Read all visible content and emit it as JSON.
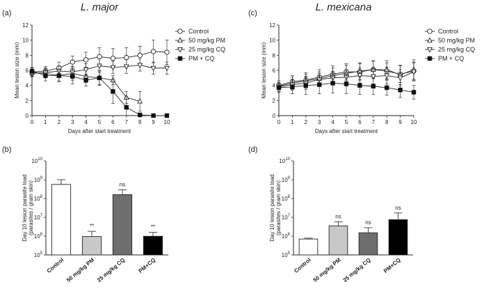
{
  "chart_data": [
    {
      "panel": "(a)",
      "type": "line",
      "title": "L. major",
      "xlabel": "Days after start treatment",
      "ylabel": "Mean lesion size (mm)",
      "xlim": [
        0,
        10
      ],
      "ylim": [
        0,
        12
      ],
      "xticks": [
        "0",
        "1",
        "2",
        "3",
        "4",
        "5",
        "6",
        "7",
        "8",
        "9",
        "10"
      ],
      "yticks": [
        "0",
        "2",
        "4",
        "6",
        "8",
        "10",
        "12"
      ],
      "x": [
        0,
        1,
        2,
        3,
        4,
        5,
        6,
        7,
        8,
        9,
        10
      ],
      "series": [
        {
          "name": "Control",
          "marker": "circle-open",
          "values": [
            5.8,
            5.9,
            6.3,
            7.1,
            7.4,
            7.8,
            7.6,
            7.7,
            8.0,
            8.5,
            8.4
          ],
          "err": [
            0.5,
            0.6,
            0.8,
            0.8,
            1.0,
            1.2,
            1.3,
            1.3,
            1.2,
            1.5,
            1.6
          ]
        },
        {
          "name": "50 mg/kg PM",
          "marker": "triangle-up-open",
          "values": [
            5.7,
            5.6,
            5.3,
            5.6,
            5.2,
            5.0,
            4.7,
            2.4,
            1.9,
            null,
            null
          ],
          "err": [
            0.6,
            0.6,
            0.7,
            0.9,
            0.8,
            0.9,
            0.6,
            0.8,
            1.3,
            null,
            null
          ]
        },
        {
          "name": "25 mg/kg CQ",
          "marker": "triangle-down-open",
          "values": [
            5.6,
            5.7,
            5.9,
            5.8,
            6.1,
            6.6,
            6.4,
            6.5,
            6.7,
            6.3,
            6.3
          ],
          "err": [
            0.4,
            0.6,
            0.7,
            0.7,
            0.8,
            0.9,
            0.8,
            0.9,
            0.8,
            0.8,
            0.8
          ]
        },
        {
          "name": "PM + CQ",
          "marker": "square-filled",
          "values": [
            5.9,
            5.3,
            5.3,
            5.2,
            4.7,
            5.0,
            3.2,
            1.1,
            0.1,
            0.0,
            0.0
          ],
          "err": [
            0.5,
            0.7,
            0.8,
            1.0,
            0.8,
            1.0,
            1.6,
            1.4,
            0.2,
            0.1,
            0.1
          ]
        }
      ]
    },
    {
      "panel": "(c)",
      "type": "line",
      "title": "L. mexicana",
      "xlabel": "Days after start treatment",
      "ylabel": "Mean lesion size (mm)",
      "xlim": [
        0,
        10
      ],
      "ylim": [
        0,
        12
      ],
      "xticks": [
        "0",
        "1",
        "2",
        "3",
        "4",
        "5",
        "6",
        "7",
        "8",
        "9",
        "10"
      ],
      "yticks": [
        "0",
        "2",
        "4",
        "6",
        "8",
        "10",
        "12"
      ],
      "x": [
        0,
        1,
        2,
        3,
        4,
        5,
        6,
        7,
        8,
        9,
        10
      ],
      "series": [
        {
          "name": "Control",
          "marker": "circle-open",
          "values": [
            4.0,
            4.5,
            4.7,
            5.1,
            5.5,
            5.8,
            5.8,
            6.1,
            5.9,
            5.5,
            5.9
          ],
          "err": [
            0.6,
            0.8,
            1.0,
            1.0,
            1.1,
            1.1,
            1.1,
            1.2,
            1.1,
            1.1,
            1.2
          ]
        },
        {
          "name": "50 mg/kg PM",
          "marker": "triangle-up-open",
          "values": [
            3.9,
            4.3,
            4.6,
            4.9,
            5.3,
            5.6,
            5.9,
            6.1,
            6.1,
            5.4,
            6.1
          ],
          "err": [
            0.7,
            0.8,
            0.9,
            0.9,
            1.0,
            1.1,
            1.1,
            1.1,
            1.2,
            1.3,
            1.3
          ]
        },
        {
          "name": "25 mg/kg CQ",
          "marker": "triangle-down-open",
          "values": [
            3.8,
            4.1,
            4.3,
            4.8,
            5.0,
            5.1,
            5.3,
            5.2,
            5.3,
            5.0,
            5.8
          ],
          "err": [
            0.6,
            0.7,
            0.8,
            0.8,
            0.9,
            1.0,
            1.0,
            1.0,
            1.1,
            1.1,
            1.2
          ]
        },
        {
          "name": "PM + CQ",
          "marker": "square-filled",
          "values": [
            3.7,
            3.8,
            4.0,
            4.1,
            4.3,
            4.2,
            4.0,
            3.9,
            3.7,
            3.4,
            3.1
          ],
          "err": [
            0.6,
            0.9,
            1.2,
            1.2,
            1.3,
            1.3,
            1.2,
            1.1,
            1.0,
            1.0,
            0.9
          ]
        }
      ]
    },
    {
      "panel": "(b)",
      "type": "bar",
      "ylabel": "Day 10 lesion parasite load",
      "ylabel2": "(parasites / gram skin)",
      "yscale": "log",
      "ylim_exp": [
        5,
        10
      ],
      "ytick_base": "10",
      "ytick_exps": [
        "5",
        "6",
        "7",
        "8",
        "9",
        "10"
      ],
      "categories": [
        "Control",
        "50 mg/kg PM",
        "25 mg/kg CQ",
        "PM+CQ"
      ],
      "values": [
        560000000,
        950000,
        160000000,
        980000
      ],
      "err_upper": [
        1000000000,
        1800000,
        290000000,
        1600000
      ],
      "fills": [
        "#ffffff",
        "#c8c8c8",
        "#6e6e6e",
        "#000000"
      ],
      "significance": [
        "",
        "**",
        "ns",
        "**"
      ]
    },
    {
      "panel": "(d)",
      "type": "bar",
      "ylabel": "Day 10 lesion parasite load",
      "ylabel2": "(parasites / gram skin)",
      "yscale": "log",
      "ylim_exp": [
        5,
        10
      ],
      "ytick_base": "10",
      "ytick_exps": [
        "5",
        "6",
        "7",
        "8",
        "9",
        "10"
      ],
      "categories": [
        "Control",
        "50 mg/kg PM",
        "25 mg/kg CQ",
        "PM+CQ"
      ],
      "values": [
        700000,
        3500000,
        1500000,
        7500000
      ],
      "err_upper": [
        780000,
        5800000,
        2800000,
        17000000
      ],
      "fills": [
        "#ffffff",
        "#c8c8c8",
        "#6e6e6e",
        "#000000"
      ],
      "significance": [
        "",
        "ns",
        "ns",
        "ns"
      ]
    }
  ]
}
